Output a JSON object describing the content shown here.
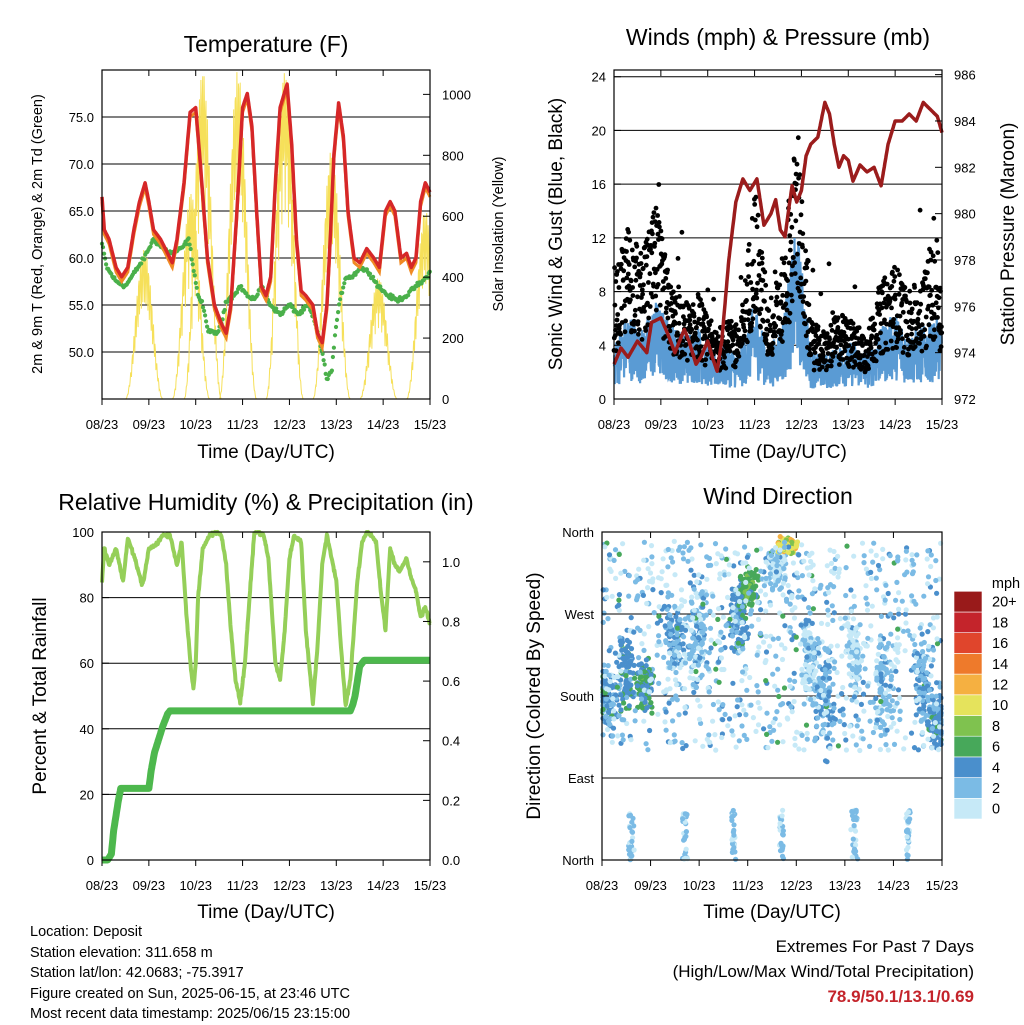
{
  "colors": {
    "temp2m": "#d62728",
    "temp9m": "#f08a24",
    "dewpoint": "#4ab04a",
    "solar": "#f6e05a",
    "wind": "#5a9bd4",
    "gust": "#000000",
    "pressure": "#9b1c1c",
    "rh": "#95cf59",
    "precip": "#4db84d",
    "extremes": "#c4242b"
  },
  "chart_data": [
    {
      "id": "temperature",
      "type": "line",
      "title": "Temperature (F)",
      "xlabel": "Time (Day/UTC)",
      "ylabel": "2m & 9m T (Red, Orange) & 2m Td (Green)",
      "y2label": "Solar Insolation (Yellow)",
      "x_ticks": [
        "08/23",
        "09/23",
        "10/23",
        "11/23",
        "12/23",
        "13/23",
        "14/23",
        "15/23"
      ],
      "ylim": [
        45,
        80
      ],
      "y_ticks": [
        "50.0",
        "55.0",
        "60.0",
        "65.0",
        "70.0",
        "75.0"
      ],
      "y2lim": [
        0,
        1080
      ],
      "y2_ticks": [
        "0",
        "200",
        "400",
        "600",
        "800",
        "1000"
      ],
      "grid": true,
      "series": [
        {
          "key": "t2m",
          "t": [
            0.0,
            0.05,
            0.15,
            0.3,
            0.42,
            0.55,
            0.68,
            0.8,
            0.92,
            1.0,
            1.1,
            1.25,
            1.35,
            1.5,
            1.6,
            1.75,
            1.88,
            2.0,
            2.1,
            2.25,
            2.4,
            2.55,
            2.65,
            2.75,
            2.88,
            3.0,
            3.1,
            3.2,
            3.3,
            3.4,
            3.5,
            3.6,
            3.7,
            3.8,
            3.95,
            4.05,
            4.15,
            4.25,
            4.35,
            4.5,
            4.6,
            4.7,
            4.8,
            4.88,
            4.95,
            5.05,
            5.15,
            5.25,
            5.38,
            5.5,
            5.65,
            5.8,
            5.92,
            6.05,
            6.15,
            6.25,
            6.38,
            6.5,
            6.6,
            6.7,
            6.8,
            6.9,
            7.0
          ],
          "v": [
            66.5,
            63.0,
            62.0,
            59.0,
            58.0,
            59.0,
            63.0,
            66.0,
            68.0,
            66.0,
            63.0,
            62.0,
            61.0,
            59.5,
            62.0,
            68.0,
            75.5,
            76.0,
            70.0,
            60.0,
            55.0,
            53.0,
            52.0,
            55.0,
            65.0,
            76.0,
            77.5,
            74.0,
            65.0,
            57.0,
            56.0,
            58.0,
            68.0,
            76.0,
            78.5,
            72.0,
            62.0,
            56.5,
            56.0,
            55.0,
            52.0,
            51.0,
            55.0,
            63.0,
            71.0,
            76.5,
            73.0,
            65.0,
            60.0,
            59.5,
            61.0,
            60.0,
            59.0,
            65.0,
            66.0,
            65.0,
            60.0,
            60.5,
            59.0,
            60.0,
            66.0,
            68.0,
            67.0
          ]
        },
        {
          "key": "dewpoint",
          "t": [
            0.0,
            0.1,
            0.3,
            0.5,
            0.7,
            0.9,
            1.1,
            1.3,
            1.5,
            1.7,
            1.85,
            1.95,
            2.05,
            2.15,
            2.25,
            2.35,
            2.45,
            2.55,
            2.65,
            2.8,
            2.95,
            3.1,
            3.2,
            3.3,
            3.4,
            3.6,
            3.8,
            4.0,
            4.2,
            4.4,
            4.55,
            4.7,
            4.8,
            4.9,
            5.0,
            5.1,
            5.2,
            5.35,
            5.5,
            5.7,
            5.9,
            6.1,
            6.3,
            6.5,
            6.7,
            6.85,
            7.0
          ],
          "v": [
            61.5,
            59.0,
            57.5,
            57.0,
            58.5,
            60.0,
            62.0,
            61.0,
            60.5,
            61.0,
            62.0,
            59.0,
            56.0,
            55.0,
            52.5,
            52.0,
            52.0,
            53.0,
            55.5,
            56.0,
            57.0,
            56.0,
            55.5,
            56.0,
            57.0,
            55.0,
            54.0,
            55.0,
            54.0,
            55.0,
            53.0,
            50.0,
            47.0,
            48.0,
            53.0,
            56.0,
            58.0,
            58.0,
            59.0,
            58.5,
            57.0,
            56.0,
            55.5,
            56.0,
            57.0,
            57.5,
            58.5
          ]
        },
        {
          "key": "solar",
          "peaks": [
            {
              "t": 0.9,
              "v": 490
            },
            {
              "t": 1.9,
              "v": 680
            },
            {
              "t": 2.15,
              "v": 1080
            },
            {
              "t": 2.9,
              "v": 1080
            },
            {
              "t": 3.9,
              "v": 1080
            },
            {
              "t": 4.9,
              "v": 820
            },
            {
              "t": 5.9,
              "v": 400
            },
            {
              "t": 6.9,
              "v": 620
            }
          ]
        }
      ]
    },
    {
      "id": "winds",
      "type": "line",
      "title": "Winds (mph) & Pressure (mb)",
      "xlabel": "Time (Day/UTC)",
      "ylabel": "Sonic Wind & Gust (Blue, Black)",
      "y2label": "Station Pressure (Maroon)",
      "x_ticks": [
        "08/23",
        "09/23",
        "10/23",
        "11/23",
        "12/23",
        "13/23",
        "14/23",
        "15/23"
      ],
      "ylim": [
        0,
        24.5
      ],
      "y_ticks": [
        "0",
        "4",
        "8",
        "12",
        "16",
        "20",
        "24"
      ],
      "y2lim": [
        972,
        986.2
      ],
      "y2_ticks": [
        "972",
        "974",
        "976",
        "978",
        "980",
        "982",
        "984",
        "986"
      ],
      "grid": true,
      "series": [
        {
          "key": "wind_level",
          "t": [
            0.0,
            0.3,
            0.6,
            0.9,
            1.2,
            1.5,
            1.8,
            2.1,
            2.4,
            2.7,
            3.0,
            3.3,
            3.6,
            3.9,
            4.2,
            4.5,
            4.8,
            5.1,
            5.4,
            5.7,
            6.0,
            6.3,
            6.6,
            6.9,
            7.0
          ],
          "v": [
            2.5,
            4.0,
            3.2,
            4.5,
            3.5,
            3.0,
            3.3,
            2.2,
            2.5,
            2.2,
            4.5,
            2.2,
            3.6,
            8.0,
            2.3,
            2.0,
            2.5,
            2.6,
            2.2,
            3.2,
            4.0,
            3.0,
            3.3,
            3.7,
            3.0
          ]
        },
        {
          "key": "gust_level",
          "t": [
            0.0,
            0.3,
            0.6,
            0.9,
            1.2,
            1.5,
            1.8,
            2.1,
            2.4,
            2.7,
            3.0,
            3.3,
            3.6,
            3.9,
            4.2,
            4.5,
            4.8,
            5.1,
            5.4,
            5.7,
            6.0,
            6.3,
            6.6,
            6.9,
            7.0
          ],
          "v": [
            6.0,
            9.0,
            7.5,
            10.0,
            6.0,
            5.0,
            5.5,
            3.5,
            4.0,
            4.0,
            11.0,
            5.0,
            7.0,
            14.0,
            4.0,
            3.5,
            4.5,
            4.0,
            3.5,
            6.0,
            7.0,
            5.5,
            6.5,
            8.5,
            5.0
          ]
        },
        {
          "key": "pressure",
          "t": [
            0.0,
            0.15,
            0.3,
            0.5,
            0.7,
            0.8,
            1.0,
            1.15,
            1.3,
            1.5,
            1.6,
            1.75,
            1.85,
            2.0,
            2.1,
            2.2,
            2.3,
            2.45,
            2.6,
            2.75,
            2.9,
            3.05,
            3.2,
            3.35,
            3.45,
            3.55,
            3.65,
            3.75,
            3.8,
            3.9,
            4.0,
            4.1,
            4.2,
            4.35,
            4.5,
            4.6,
            4.7,
            4.8,
            4.9,
            5.0,
            5.1,
            5.25,
            5.4,
            5.55,
            5.7,
            5.85,
            6.0,
            6.15,
            6.3,
            6.45,
            6.6,
            6.75,
            6.9,
            7.0
          ],
          "v": [
            973.5,
            974.2,
            973.8,
            974.5,
            974.0,
            975.3,
            975.5,
            974.8,
            974.0,
            975.0,
            974.5,
            973.5,
            973.8,
            974.5,
            973.8,
            973.2,
            974.5,
            978.0,
            980.5,
            981.5,
            981.0,
            981.5,
            979.5,
            980.0,
            980.6,
            979.3,
            979.0,
            980.5,
            981.2,
            980.5,
            981.0,
            982.5,
            983.0,
            983.3,
            984.8,
            984.3,
            983.0,
            982.0,
            982.5,
            982.3,
            981.4,
            982.1,
            981.8,
            982.0,
            981.2,
            983.0,
            984.0,
            984.0,
            984.3,
            984.0,
            984.8,
            984.5,
            984.2,
            983.5
          ]
        }
      ]
    },
    {
      "id": "humidity",
      "type": "line",
      "title": "Relative Humidity (%) & Precipitation (in)",
      "xlabel": "Time (Day/UTC)",
      "ylabel": "Percent & Total Rainfall",
      "x_ticks": [
        "08/23",
        "09/23",
        "10/23",
        "11/23",
        "12/23",
        "13/23",
        "14/23",
        "15/23"
      ],
      "ylim": [
        0,
        100
      ],
      "y_ticks": [
        "0",
        "20",
        "40",
        "60",
        "80",
        "100"
      ],
      "y2lim": [
        0,
        1.1
      ],
      "y2_ticks": [
        "0.0",
        "0.2",
        "0.4",
        "0.6",
        "0.8",
        "1.0"
      ],
      "grid": true,
      "series": [
        {
          "key": "rh",
          "t": [
            0.0,
            0.05,
            0.15,
            0.3,
            0.45,
            0.55,
            0.7,
            0.85,
            0.9,
            1.0,
            1.15,
            1.3,
            1.45,
            1.6,
            1.7,
            1.8,
            1.9,
            1.95,
            2.0,
            2.05,
            2.15,
            2.3,
            2.45,
            2.55,
            2.65,
            2.75,
            2.85,
            2.95,
            3.05,
            3.15,
            3.25,
            3.35,
            3.45,
            3.55,
            3.7,
            3.8,
            3.9,
            4.0,
            4.1,
            4.25,
            4.35,
            4.5,
            4.6,
            4.7,
            4.8,
            4.9,
            5.0,
            5.1,
            5.2,
            5.3,
            5.45,
            5.55,
            5.65,
            5.75,
            5.85,
            5.95,
            6.05,
            6.15,
            6.25,
            6.35,
            6.5,
            6.6,
            6.7,
            6.8,
            6.9,
            7.0
          ],
          "v": [
            85.0,
            95.0,
            90.0,
            95.0,
            85.0,
            98.0,
            92.0,
            84.0,
            86.0,
            95.0,
            96.0,
            99.0,
            99.0,
            90.0,
            97.0,
            75.0,
            58.0,
            52.0,
            60.0,
            80.0,
            95.0,
            99.0,
            100.0,
            99.0,
            90.0,
            70.0,
            55.0,
            48.0,
            60.0,
            80.0,
            100.0,
            100.0,
            99.0,
            92.0,
            60.0,
            55.0,
            70.0,
            92.0,
            99.0,
            97.0,
            70.0,
            48.0,
            65.0,
            90.0,
            99.0,
            92.0,
            85.0,
            65.0,
            47.0,
            55.0,
            85.0,
            97.0,
            100.0,
            99.0,
            97.0,
            82.0,
            70.0,
            95.0,
            90.0,
            88.0,
            92.0,
            86.0,
            82.0,
            74.0,
            77.0,
            72.0
          ]
        },
        {
          "key": "precip",
          "t": [
            0.0,
            0.12,
            0.2,
            0.25,
            0.3,
            0.35,
            0.4,
            1.0,
            1.05,
            1.12,
            1.2,
            1.3,
            1.4,
            1.45,
            1.5,
            5.3,
            5.35,
            5.4,
            5.5,
            5.6,
            7.0
          ],
          "v": [
            0.0,
            0.0,
            0.02,
            0.1,
            0.15,
            0.2,
            0.24,
            0.24,
            0.3,
            0.36,
            0.4,
            0.45,
            0.49,
            0.5,
            0.5,
            0.5,
            0.52,
            0.55,
            0.65,
            0.67,
            0.67
          ]
        }
      ]
    },
    {
      "id": "direction",
      "type": "scatter",
      "title": "Wind Direction",
      "xlabel": "Time (Day/UTC)",
      "ylabel": "Direction (Colored By Speed)",
      "x_ticks": [
        "08/23",
        "09/23",
        "10/23",
        "11/23",
        "12/23",
        "13/23",
        "14/23",
        "15/23"
      ],
      "ylim": [
        0,
        360
      ],
      "y_ticks": [
        "North",
        "East",
        "South",
        "West",
        "North"
      ],
      "grid": true,
      "legend_title": "mph",
      "legend": [
        "0",
        "2",
        "4",
        "6",
        "8",
        "10",
        "12",
        "14",
        "16",
        "18",
        "20+"
      ],
      "legend_colors": [
        "#c6e9f7",
        "#7bbbe5",
        "#4a8fcc",
        "#47a85a",
        "#7fc24f",
        "#e5e35c",
        "#f5b041",
        "#ee7a2b",
        "#e0452c",
        "#c4242b",
        "#991a1a"
      ],
      "clusters": [
        {
          "t": 0.1,
          "dir": 180,
          "spread": 50,
          "speed": 4
        },
        {
          "t": 0.5,
          "dir": 200,
          "spread": 70,
          "speed": 4
        },
        {
          "t": 0.9,
          "dir": 190,
          "spread": 40,
          "speed": 5
        },
        {
          "t": 1.5,
          "dir": 240,
          "spread": 60,
          "speed": 3
        },
        {
          "t": 2.0,
          "dir": 250,
          "spread": 80,
          "speed": 2
        },
        {
          "t": 2.8,
          "dir": 270,
          "spread": 60,
          "speed": 4
        },
        {
          "t": 3.0,
          "dir": 300,
          "spread": 30,
          "speed": 6
        },
        {
          "t": 3.6,
          "dir": 320,
          "spread": 30,
          "speed": 1
        },
        {
          "t": 3.8,
          "dir": 345,
          "spread": 12,
          "speed": 10
        },
        {
          "t": 4.3,
          "dir": 220,
          "spread": 60,
          "speed": 1
        },
        {
          "t": 4.6,
          "dir": 180,
          "spread": 80,
          "speed": 3
        },
        {
          "t": 5.2,
          "dir": 220,
          "spread": 60,
          "speed": 1
        },
        {
          "t": 5.8,
          "dir": 200,
          "spread": 80,
          "speed": 2
        },
        {
          "t": 6.6,
          "dir": 190,
          "spread": 70,
          "speed": 3
        },
        {
          "t": 6.9,
          "dir": 150,
          "spread": 40,
          "speed": 4
        }
      ],
      "north_cluster_times": [
        0.6,
        1.7,
        2.7,
        3.7,
        5.2,
        6.3
      ]
    }
  ],
  "info": {
    "location": "Location: Deposit",
    "elevation": "Station elevation: 311.658 m",
    "latlon": "Station lat/lon: 42.0683; -75.3917",
    "created": "Figure created on Sun, 2025-06-15, at 23:46 UTC",
    "timestamp": "Most recent data timestamp: 2025/06/15 23:15:00"
  },
  "extremes": {
    "title": "Extremes For Past 7 Days",
    "subtitle": "(High/Low/Max Wind/Total Precipitation)",
    "values": "78.9/50.1/13.1/0.69"
  }
}
